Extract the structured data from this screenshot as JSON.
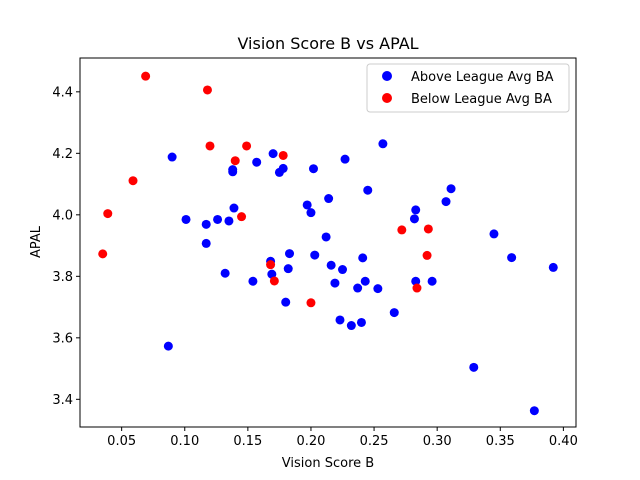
{
  "chart_data": {
    "type": "scatter",
    "title": "Vision Score B vs APAL",
    "xlabel": "Vision Score B",
    "ylabel": "APAL",
    "xlim": [
      0.017,
      0.41
    ],
    "ylim": [
      3.31,
      4.51
    ],
    "xticks": [
      0.05,
      0.1,
      0.15,
      0.2,
      0.25,
      0.3,
      0.35,
      0.4
    ],
    "xtick_labels": [
      "0.05",
      "0.10",
      "0.15",
      "0.20",
      "0.25",
      "0.30",
      "0.35",
      "0.40"
    ],
    "yticks": [
      3.4,
      3.6,
      3.8,
      4.0,
      4.2,
      4.4
    ],
    "ytick_labels": [
      "3.4",
      "3.6",
      "3.8",
      "4.0",
      "4.2",
      "4.4"
    ],
    "grid": false,
    "legend_position": "top-right",
    "series": [
      {
        "name": "Above League Avg BA",
        "color": "#0000ff",
        "points": [
          [
            0.087,
            3.573
          ],
          [
            0.09,
            4.188
          ],
          [
            0.101,
            3.985
          ],
          [
            0.117,
            3.969
          ],
          [
            0.117,
            3.907
          ],
          [
            0.126,
            3.985
          ],
          [
            0.132,
            3.81
          ],
          [
            0.135,
            3.98
          ],
          [
            0.138,
            4.147
          ],
          [
            0.138,
            4.14
          ],
          [
            0.139,
            4.022
          ],
          [
            0.154,
            3.784
          ],
          [
            0.157,
            4.171
          ],
          [
            0.168,
            3.849
          ],
          [
            0.169,
            3.807
          ],
          [
            0.17,
            4.199
          ],
          [
            0.175,
            4.138
          ],
          [
            0.178,
            4.151
          ],
          [
            0.18,
            3.716
          ],
          [
            0.182,
            3.825
          ],
          [
            0.183,
            3.874
          ],
          [
            0.197,
            4.032
          ],
          [
            0.2,
            4.007
          ],
          [
            0.202,
            4.15
          ],
          [
            0.203,
            3.869
          ],
          [
            0.212,
            3.928
          ],
          [
            0.214,
            4.053
          ],
          [
            0.216,
            3.836
          ],
          [
            0.219,
            3.778
          ],
          [
            0.223,
            3.658
          ],
          [
            0.225,
            3.822
          ],
          [
            0.227,
            4.181
          ],
          [
            0.232,
            3.64
          ],
          [
            0.237,
            3.762
          ],
          [
            0.24,
            3.65
          ],
          [
            0.241,
            3.86
          ],
          [
            0.243,
            3.784
          ],
          [
            0.245,
            4.08
          ],
          [
            0.253,
            3.76
          ],
          [
            0.257,
            4.231
          ],
          [
            0.266,
            3.682
          ],
          [
            0.282,
            3.987
          ],
          [
            0.283,
            4.016
          ],
          [
            0.283,
            3.784
          ],
          [
            0.296,
            3.784
          ],
          [
            0.307,
            4.043
          ],
          [
            0.311,
            4.085
          ],
          [
            0.329,
            3.504
          ],
          [
            0.345,
            3.938
          ],
          [
            0.359,
            3.861
          ],
          [
            0.377,
            3.363
          ],
          [
            0.392,
            3.829
          ]
        ]
      },
      {
        "name": "Below League Avg BA",
        "color": "#ff0000",
        "points": [
          [
            0.035,
            3.873
          ],
          [
            0.039,
            4.004
          ],
          [
            0.059,
            4.111
          ],
          [
            0.069,
            4.451
          ],
          [
            0.118,
            4.406
          ],
          [
            0.12,
            4.224
          ],
          [
            0.14,
            4.176
          ],
          [
            0.145,
            3.994
          ],
          [
            0.149,
            4.224
          ],
          [
            0.168,
            3.838
          ],
          [
            0.171,
            3.785
          ],
          [
            0.178,
            4.193
          ],
          [
            0.2,
            3.714
          ],
          [
            0.272,
            3.951
          ],
          [
            0.284,
            3.762
          ],
          [
            0.292,
            3.868
          ],
          [
            0.293,
            3.954
          ]
        ]
      }
    ]
  }
}
